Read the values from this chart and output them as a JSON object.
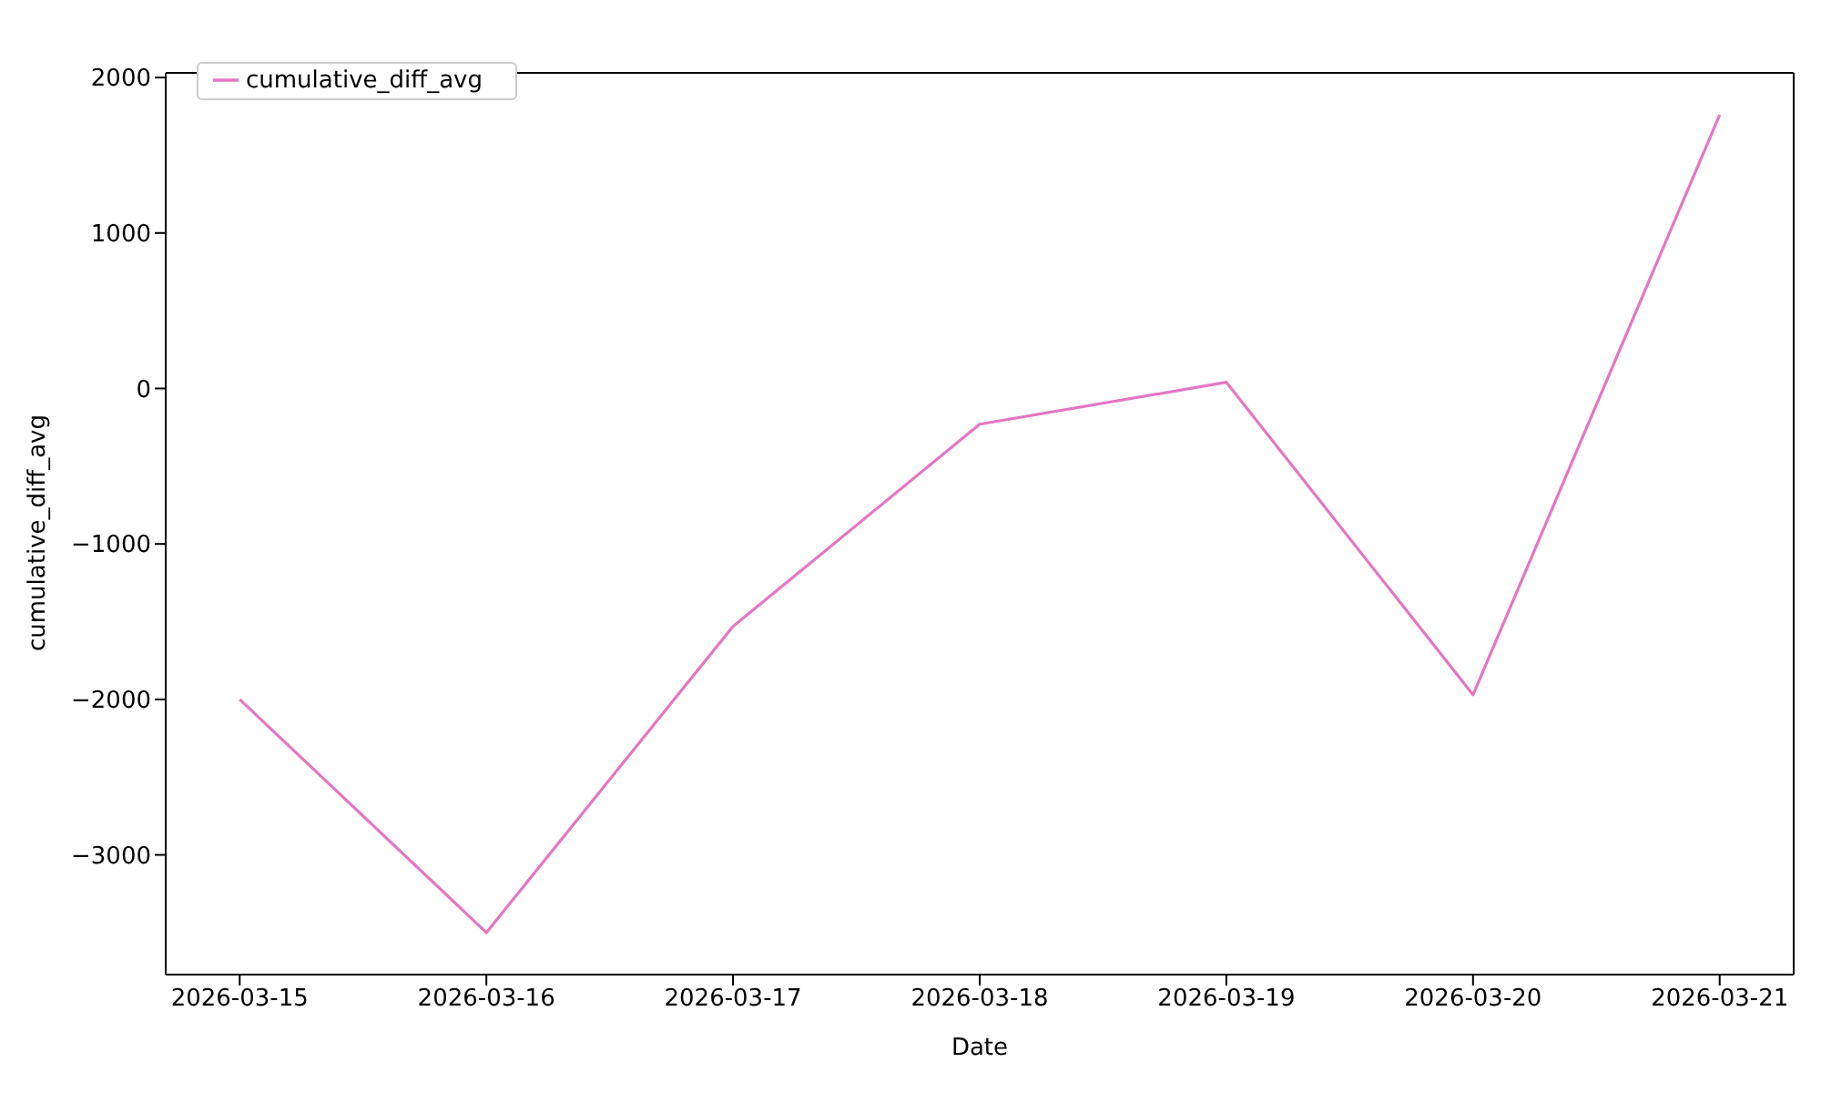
{
  "chart_data": {
    "type": "line",
    "xlabel": "Date",
    "ylabel": "cumulative_diff_avg",
    "x": [
      "2026-03-15",
      "2026-03-16",
      "2026-03-17",
      "2026-03-18",
      "2026-03-19",
      "2026-03-20",
      "2026-03-21"
    ],
    "series": [
      {
        "name": "cumulative_diff_avg",
        "color": "#e377c2",
        "values": [
          -2000,
          -3500,
          -1530,
          -230,
          40,
          -1970,
          1760
        ]
      }
    ],
    "xlim": [
      "2026-03-14T16:48",
      "2026-03-21T07:12"
    ],
    "xticks": [
      "2026-03-15",
      "2026-03-16",
      "2026-03-17",
      "2026-03-18",
      "2026-03-19",
      "2026-03-20",
      "2026-03-21"
    ],
    "ylim": [
      -3770,
      2030
    ],
    "yticks": [
      {
        "value": -3000,
        "label": "−3000"
      },
      {
        "value": -2000,
        "label": "−2000"
      },
      {
        "value": -1000,
        "label": "−1000"
      },
      0,
      1000,
      2000
    ],
    "grid": false,
    "legend": "top left",
    "marker": "none",
    "line_style": "solid"
  }
}
